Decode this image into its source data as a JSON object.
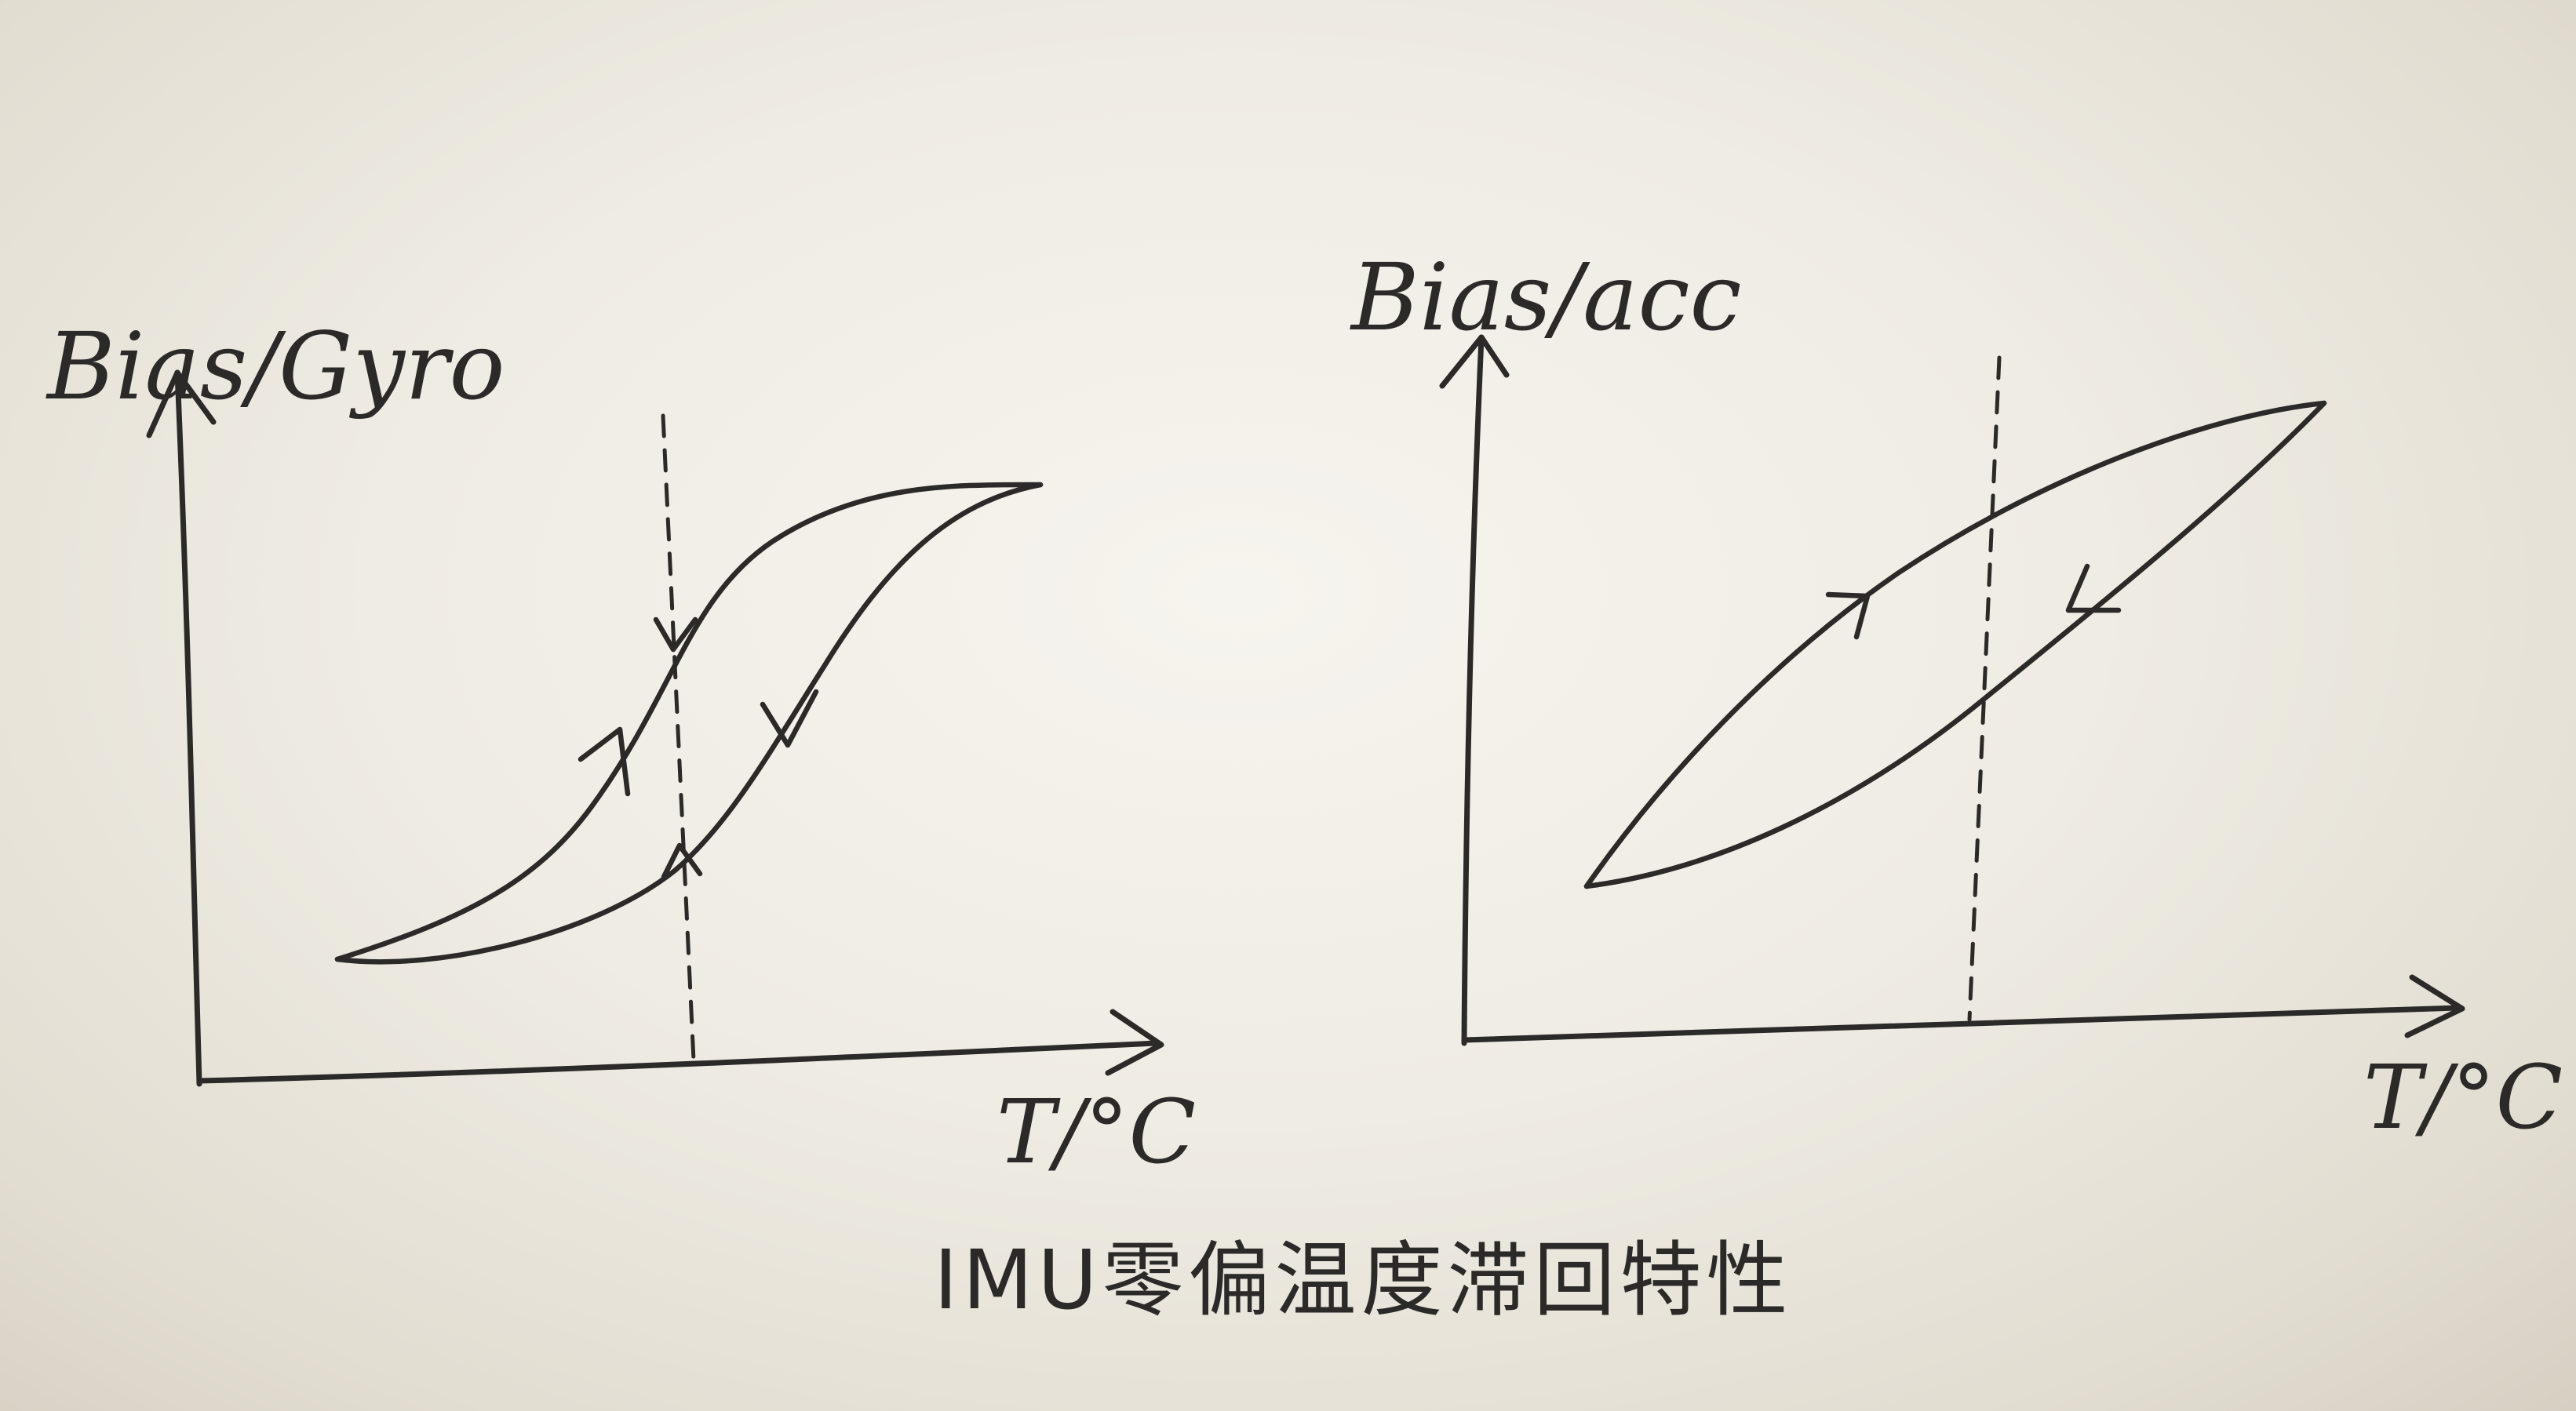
{
  "caption": "IMU零偏温度滞回特性",
  "panels": [
    {
      "y_label": "Bias/Gyro",
      "x_label": "T/°C",
      "shape": "S-shaped hysteresis loop"
    },
    {
      "y_label": "Bias/acc",
      "x_label": "T/°C",
      "shape": "lens-shaped hysteresis loop"
    }
  ],
  "colors": {
    "paper": "#efece4",
    "ink": "#2b2a28"
  }
}
